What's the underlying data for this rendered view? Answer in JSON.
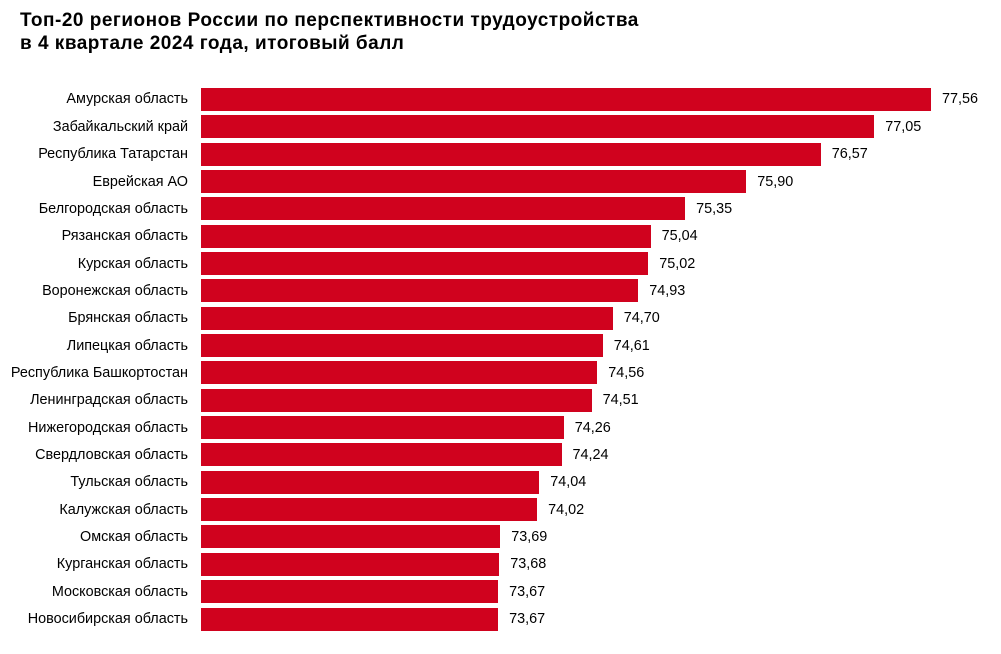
{
  "title": {
    "line1": "Топ-20 регионов России по перспективности трудоустройства",
    "line2": "в 4 квартале 2024 года, итоговый балл"
  },
  "chart_data": {
    "type": "bar",
    "orientation": "horizontal",
    "title": "Топ-20 регионов России по перспективности трудоустройства в 4 квартале 2024 года, итоговый балл",
    "categories": [
      "Амурская область",
      "Забайкальский край",
      "Республика Татарстан",
      "Еврейская АО",
      "Белгородская область",
      "Рязанская область",
      "Курская область",
      "Воронежская область",
      "Брянская область",
      "Липецкая область",
      "Республика Башкортостан",
      "Ленинградская область",
      "Нижегородская область",
      "Свердловская область",
      "Тульская область",
      "Калужская область",
      "Омская область",
      "Курганская область",
      "Московская область",
      "Новосибирская область"
    ],
    "values": [
      77.56,
      77.05,
      76.57,
      75.9,
      75.35,
      75.04,
      75.02,
      74.93,
      74.7,
      74.61,
      74.56,
      74.51,
      74.26,
      74.24,
      74.04,
      74.02,
      73.69,
      73.68,
      73.67,
      73.67
    ],
    "value_labels": [
      "77,56",
      "77,05",
      "76,57",
      "75,90",
      "75,35",
      "75,04",
      "75,02",
      "74,93",
      "74,70",
      "74,61",
      "74,56",
      "74,51",
      "74,26",
      "74,24",
      "74,04",
      "74,02",
      "73,69",
      "73,68",
      "73,67",
      "73,67"
    ],
    "bar_color": "#d0021e",
    "xlabel": "",
    "ylabel": "",
    "xlim": [
      71,
      77.56
    ],
    "grid": false,
    "legend": false
  }
}
